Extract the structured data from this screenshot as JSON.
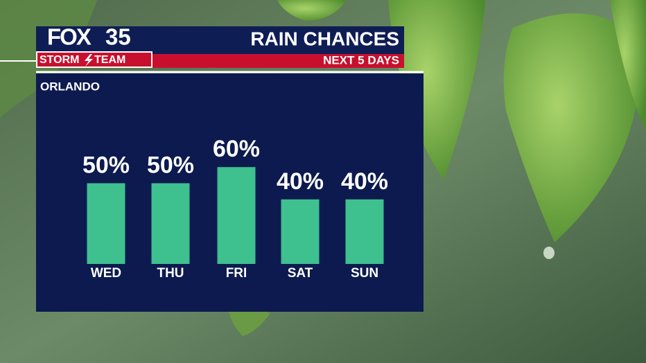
{
  "header": {
    "logo": {
      "network": "FOX",
      "channel": "35",
      "team_left": "STORM",
      "team_right": "TEAM"
    },
    "title": "RAIN CHANCES",
    "subtitle": "NEXT 5 DAYS"
  },
  "chart_data": {
    "type": "bar",
    "title": "ORLANDO",
    "categories": [
      "WED",
      "THU",
      "FRI",
      "SAT",
      "SUN"
    ],
    "values": [
      50,
      50,
      60,
      40,
      40
    ],
    "value_labels": [
      "50%",
      "50%",
      "60%",
      "40%",
      "40%"
    ],
    "color": "#3ec08f"
  }
}
